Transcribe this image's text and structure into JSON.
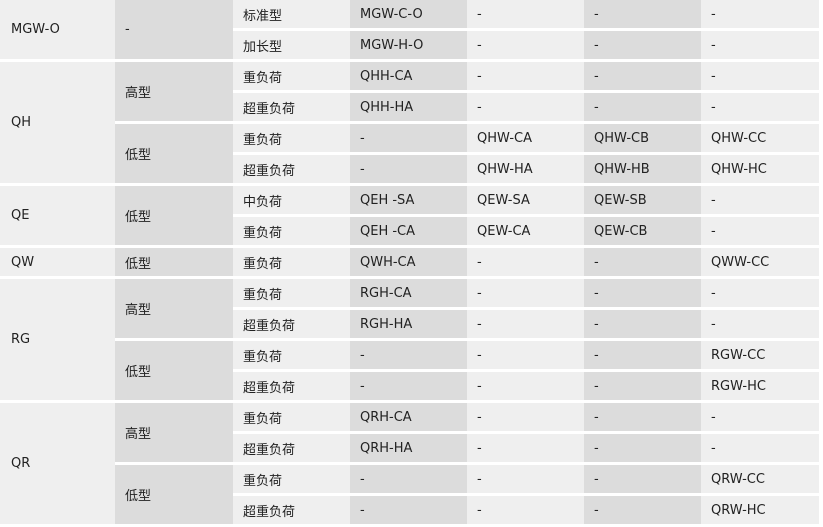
{
  "colors": {
    "light": "#efefef",
    "dark": "#dcdcdc",
    "separator": "#ffffff"
  },
  "groups": [
    {
      "series": "MGW-O",
      "subgroups": [
        {
          "type": "-",
          "rows": [
            {
              "load": "标准型",
              "models": [
                "MGW-C-O",
                "-",
                "-",
                "-"
              ]
            },
            {
              "load": "加长型",
              "models": [
                "MGW-H-O",
                "-",
                "-",
                "-"
              ]
            }
          ]
        }
      ]
    },
    {
      "series": "QH",
      "subgroups": [
        {
          "type": "高型",
          "rows": [
            {
              "load": "重负荷",
              "models": [
                "QHH-CA",
                "-",
                "-",
                "-"
              ]
            },
            {
              "load": "超重负荷",
              "models": [
                "QHH-HA",
                "-",
                "-",
                "-"
              ]
            }
          ]
        },
        {
          "type": "低型",
          "rows": [
            {
              "load": "重负荷",
              "models": [
                "-",
                "QHW-CA",
                "QHW-CB",
                "QHW-CC"
              ]
            },
            {
              "load": "超重负荷",
              "models": [
                "-",
                "QHW-HA",
                "QHW-HB",
                "QHW-HC"
              ]
            }
          ]
        }
      ]
    },
    {
      "series": "QE",
      "subgroups": [
        {
          "type": "低型",
          "rows": [
            {
              "load": "中负荷",
              "models": [
                "QEH -SA",
                "QEW-SA",
                "QEW-SB",
                "-"
              ]
            },
            {
              "load": "重负荷",
              "models": [
                "QEH -CA",
                "QEW-CA",
                "QEW-CB",
                "-"
              ]
            }
          ]
        }
      ]
    },
    {
      "series": "QW",
      "subgroups": [
        {
          "type": "低型",
          "rows": [
            {
              "load": "重负荷",
              "models": [
                "QWH-CA",
                "-",
                "-",
                "QWW-CC"
              ]
            }
          ]
        }
      ]
    },
    {
      "series": "RG",
      "subgroups": [
        {
          "type": "高型",
          "rows": [
            {
              "load": "重负荷",
              "models": [
                "RGH-CA",
                "-",
                "-",
                "-"
              ]
            },
            {
              "load": "超重负荷",
              "models": [
                "RGH-HA",
                "-",
                "-",
                "-"
              ]
            }
          ]
        },
        {
          "type": "低型",
          "rows": [
            {
              "load": "重负荷",
              "models": [
                "-",
                "-",
                "-",
                "RGW-CC"
              ]
            },
            {
              "load": "超重负荷",
              "models": [
                "-",
                "-",
                "-",
                "RGW-HC"
              ]
            }
          ]
        }
      ]
    },
    {
      "series": "QR",
      "subgroups": [
        {
          "type": "高型",
          "rows": [
            {
              "load": "重负荷",
              "models": [
                "QRH-CA",
                "-",
                "-",
                "-"
              ]
            },
            {
              "load": "超重负荷",
              "models": [
                "QRH-HA",
                "-",
                "-",
                "-"
              ]
            }
          ]
        },
        {
          "type": "低型",
          "rows": [
            {
              "load": "重负荷",
              "models": [
                "-",
                "-",
                "-",
                "QRW-CC"
              ]
            },
            {
              "load": "超重负荷",
              "models": [
                "-",
                "-",
                "-",
                "QRW-HC"
              ]
            }
          ]
        }
      ]
    }
  ]
}
